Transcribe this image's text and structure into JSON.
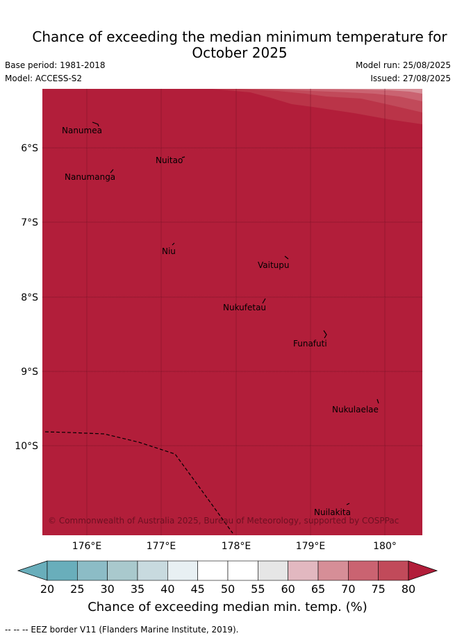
{
  "title_line1": "Chance of exceeding the median minimum temperature for",
  "title_line2": "October 2025",
  "base_period": "Base period: 1981-2018",
  "model": "Model: ACCESS-S2",
  "model_run": "Model run: 25/08/2025",
  "issued": "Issued: 27/08/2025",
  "map": {
    "lon_ticks": [
      "176°E",
      "177°E",
      "178°E",
      "179°E",
      "180°"
    ],
    "lat_ticks": [
      "6°S",
      "7°S",
      "8°S",
      "9°S",
      "10°S"
    ],
    "places": [
      "Nanumea",
      "Nuitao",
      "Nanumanga",
      "Niu",
      "Vaitupu",
      "Nukufetau",
      "Funafuti",
      "Nukulaelae",
      "Nuilakita"
    ],
    "copyright": "© Commonwealth of Australia 2025, Bureau of Meteorology, supported by COSPPac",
    "dominant_color": "#b21e3a"
  },
  "colorbar": {
    "ticks": [
      "20",
      "25",
      "30",
      "35",
      "40",
      "45",
      "50",
      "55",
      "60",
      "65",
      "70",
      "75",
      "80"
    ],
    "colors": [
      "#69aebb",
      "#8cbcc6",
      "#a9c9cd",
      "#c8dadf",
      "#e8f0f3",
      "#ffffff",
      "#ffffff",
      "#e6e6e6",
      "#e2b8c0",
      "#d68e97",
      "#ca6371",
      "#c14a5a",
      "#b21e3a"
    ],
    "title": "Chance of exceeding median min. temp. (%)"
  },
  "footnote": "--  --  -- EEZ border V11 (Flanders Marine Institute, 2019)."
}
